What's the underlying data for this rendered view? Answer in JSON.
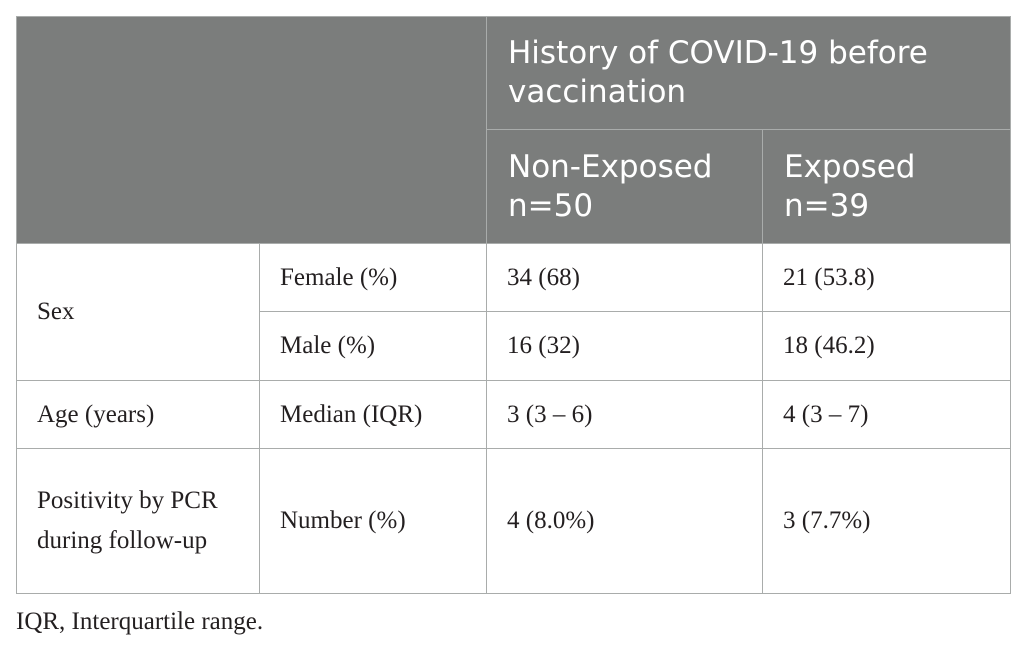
{
  "table": {
    "header": {
      "group_label": "History of COVID-19 before vaccination",
      "col_non_exposed": "Non-Exposed n=50",
      "col_exposed": "Exposed n=39"
    },
    "rows": [
      {
        "group": "Sex",
        "measure": "Female (%)",
        "non_exposed": "34 (68)",
        "exposed": "21 (53.8)"
      },
      {
        "group": "",
        "measure": "Male (%)",
        "non_exposed": "16 (32)",
        "exposed": "18 (46.2)"
      },
      {
        "group": "Age (years)",
        "measure": "Median (IQR)",
        "non_exposed": "3 (3 – 6)",
        "exposed": "4 (3 – 7)"
      },
      {
        "group": "Positivity by PCR during follow-up",
        "measure": "Number (%)",
        "non_exposed": "4 (8.0%)",
        "exposed": "3 (7.7%)"
      }
    ]
  },
  "footnote": "IQR, Interquartile range."
}
